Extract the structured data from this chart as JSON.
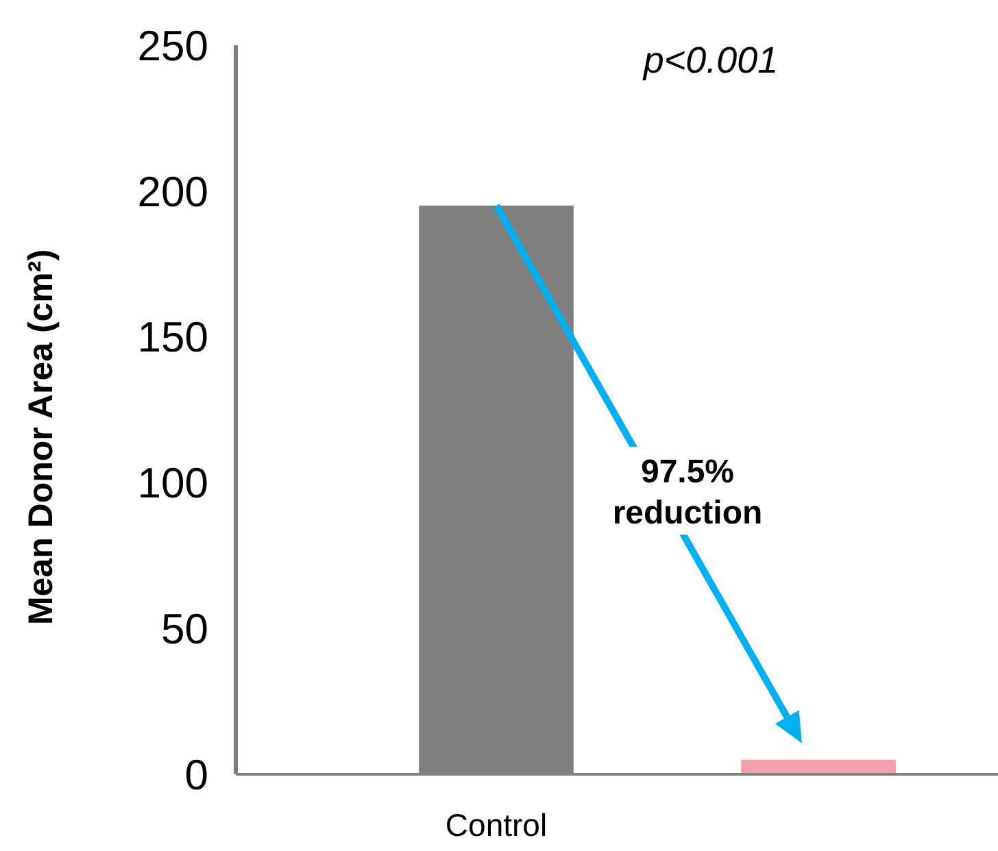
{
  "chart_data": {
    "type": "bar",
    "ylabel": "Mean Donor Area (cm²)",
    "categories": [
      "Control",
      null
    ],
    "colors": [
      "#7f7f7f",
      "#f4a0ac"
    ],
    "values": [
      195,
      5
    ],
    "ylim": [
      0,
      250
    ],
    "yticks": [
      0,
      50,
      100,
      150,
      200,
      250
    ],
    "annotations": [
      "p<0.001",
      "97.5%\nreduction"
    ]
  }
}
